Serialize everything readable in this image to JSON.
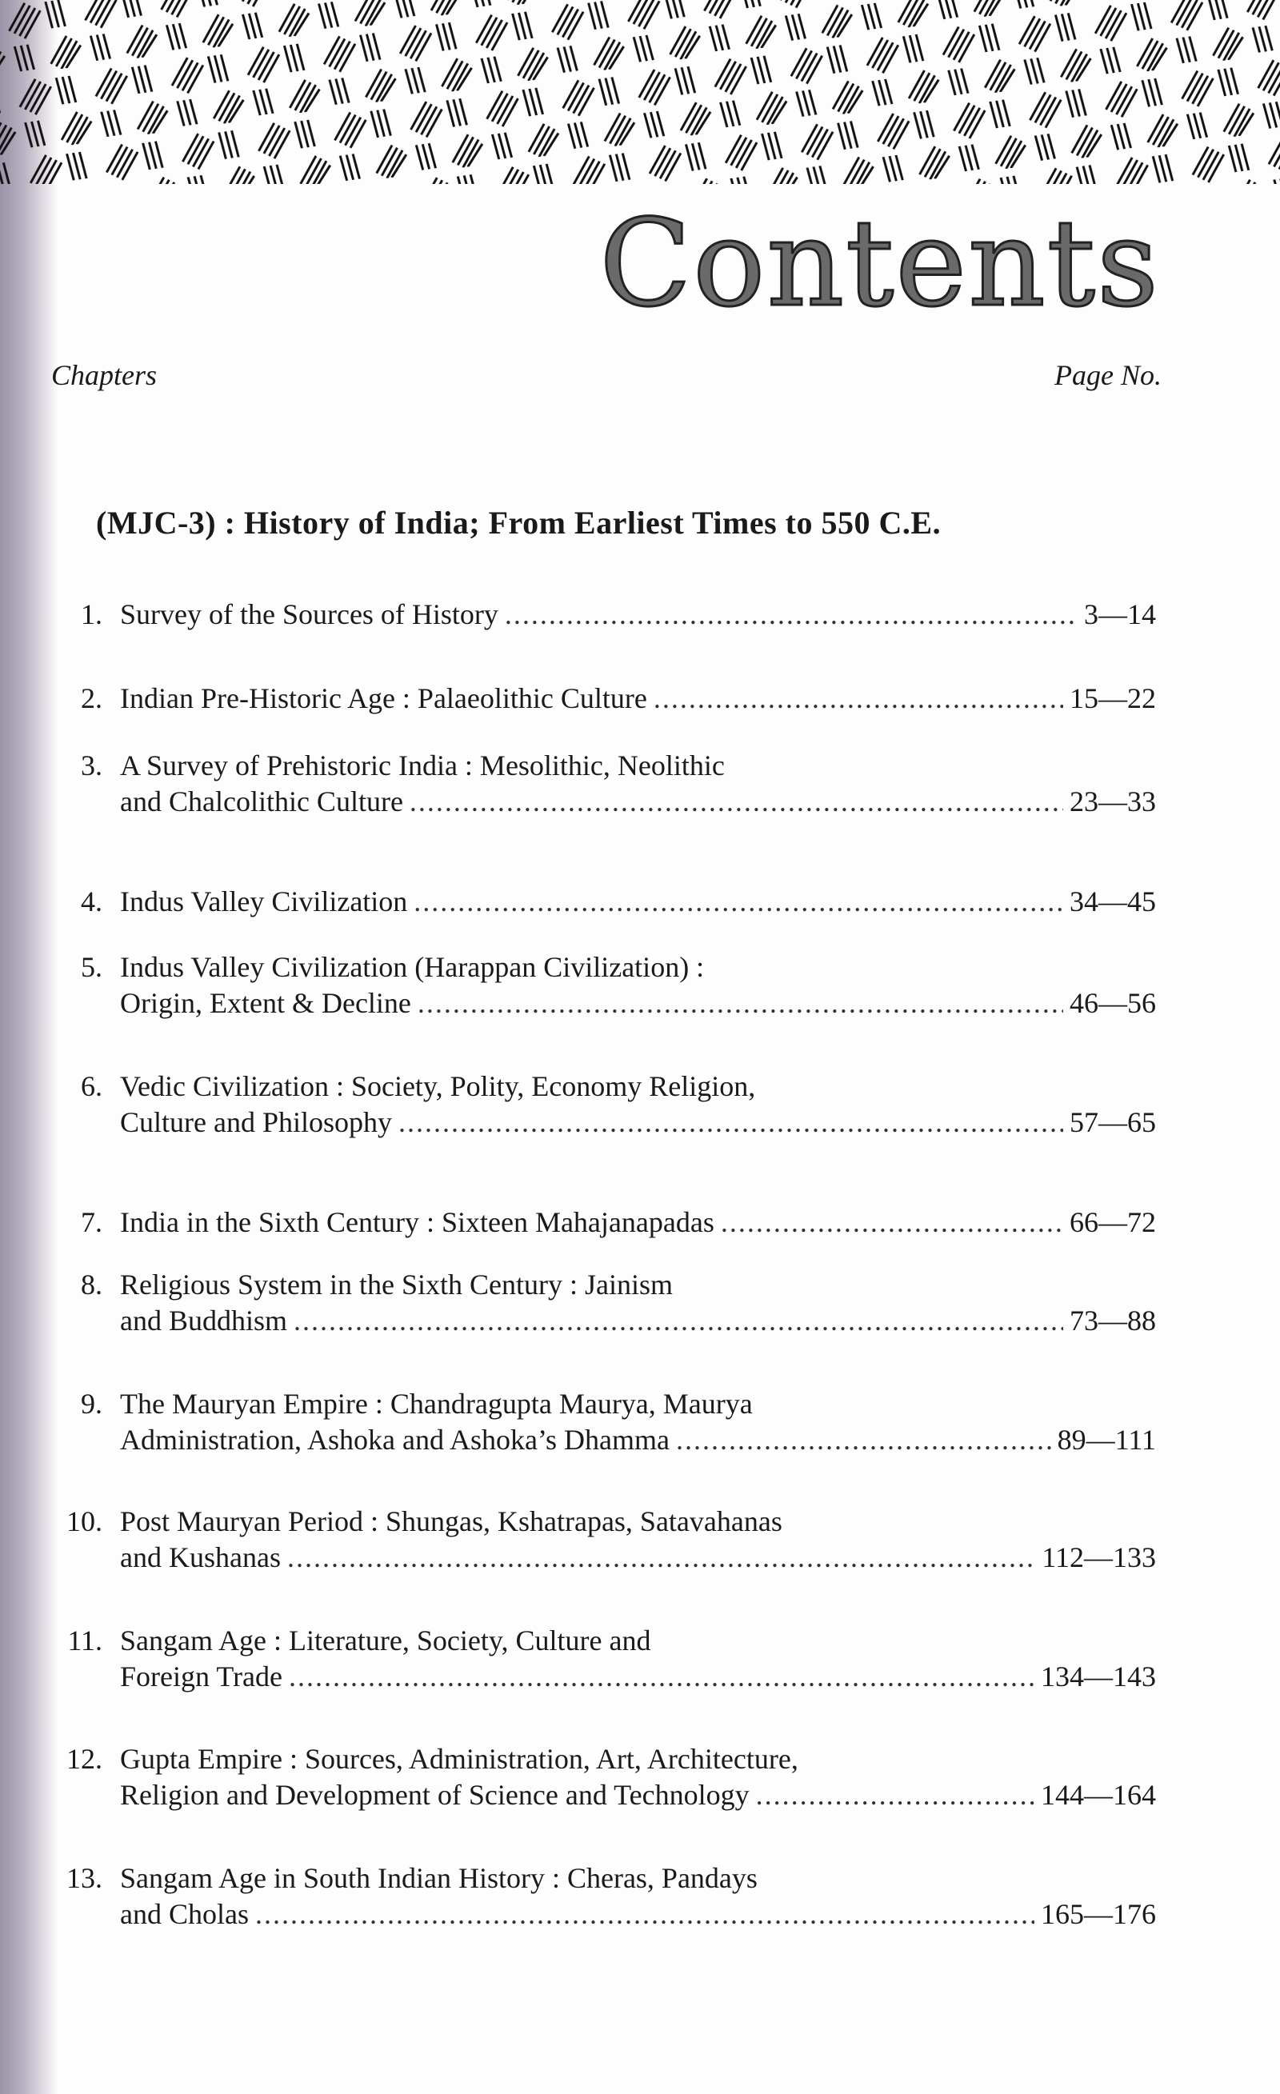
{
  "title": "Contents",
  "columns": {
    "left": "Chapters",
    "right": "Page No."
  },
  "section": "(MJC-3) : History of India; From Earliest Times to 550 C.E.",
  "items": [
    {
      "number": "1.",
      "line1": "",
      "line2": "Survey of the Sources of History",
      "pages": "3—14"
    },
    {
      "number": "2.",
      "line1": "",
      "line2": "Indian Pre-Historic Age : Palaeolithic Culture",
      "pages": "15—22"
    },
    {
      "number": "3.",
      "line1": "A Survey of Prehistoric India : Mesolithic, Neolithic",
      "line2": "and Chalcolithic Culture",
      "pages": "23—33"
    },
    {
      "number": "4.",
      "line1": "",
      "line2": "Indus Valley Civilization",
      "pages": "34—45"
    },
    {
      "number": "5.",
      "line1": "Indus Valley Civilization (Harappan Civilization) :",
      "line2": "Origin, Extent & Decline",
      "pages": "46—56"
    },
    {
      "number": "6.",
      "line1": "Vedic Civilization : Society, Polity, Economy Religion,",
      "line2": "Culture and Philosophy",
      "pages": "57—65"
    },
    {
      "number": "7.",
      "line1": "",
      "line2": "India in the Sixth Century : Sixteen Mahajanapadas",
      "pages": "66—72"
    },
    {
      "number": "8.",
      "line1": "Religious System in the Sixth Century : Jainism",
      "line2": "and Buddhism",
      "pages": "73—88"
    },
    {
      "number": "9.",
      "line1": "The Mauryan Empire : Chandragupta Maurya, Maurya",
      "line2": "Administration, Ashoka and Ashoka’s Dhamma",
      "pages": "89—111"
    },
    {
      "number": "10.",
      "line1": "Post Mauryan Period : Shungas, Kshatrapas, Satavahanas",
      "line2": "and Kushanas",
      "pages": "112—133"
    },
    {
      "number": "11.",
      "line1": "Sangam Age : Literature, Society, Culture and",
      "line2": "Foreign Trade",
      "pages": "134—143"
    },
    {
      "number": "12.",
      "line1": "Gupta Empire : Sources, Administration, Art, Architecture,",
      "line2": "Religion and Development of Science and Technology",
      "pages": "144—164"
    },
    {
      "number": "13.",
      "line1": "Sangam Age in South Indian History : Cheras, Pandays",
      "line2": "and Cholas",
      "pages": "165—176"
    }
  ]
}
